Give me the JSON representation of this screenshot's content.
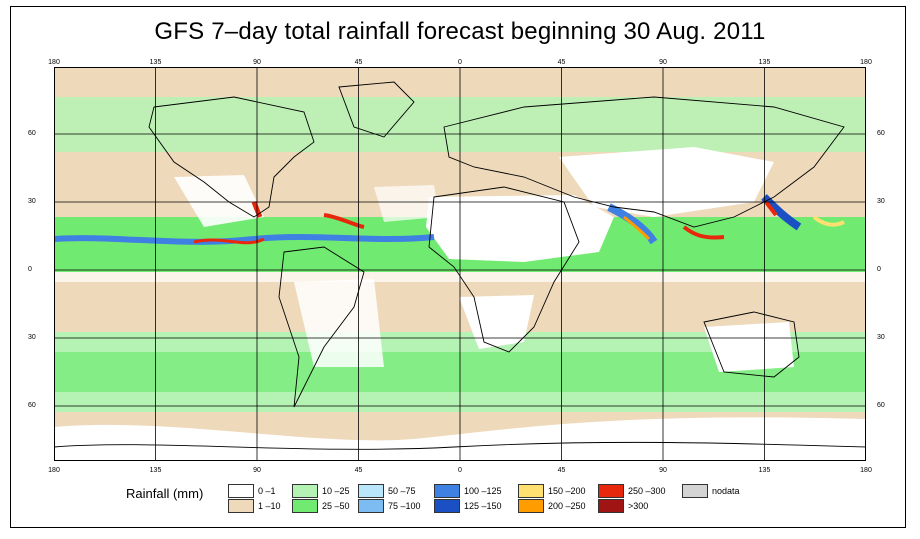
{
  "title": "GFS 7–day total rainfall forecast beginning 30 Aug. 2011",
  "axes": {
    "lon_ticks": [
      "180",
      "135",
      "90",
      "45",
      "0",
      "45",
      "90",
      "135",
      "180"
    ],
    "lat_ticks": [
      "60",
      "30",
      "0",
      "30",
      "60"
    ]
  },
  "legend": {
    "title": "Rainfall (mm)",
    "items": [
      {
        "label": "0 –1",
        "color": "#ffffff"
      },
      {
        "label": "1 –10",
        "color": "#eed9bb"
      },
      {
        "label": "10 –25",
        "color": "#b5f3b5"
      },
      {
        "label": "25 –50",
        "color": "#70ea70"
      },
      {
        "label": "50 –75",
        "color": "#b9e6fb"
      },
      {
        "label": "75 –100",
        "color": "#7cbcf2"
      },
      {
        "label": "100 –125",
        "color": "#3f80e3"
      },
      {
        "label": "125 –150",
        "color": "#1b4fc4"
      },
      {
        "label": "150 –200",
        "color": "#ffe070"
      },
      {
        "label": "200 –250",
        "color": "#ff9c00"
      },
      {
        "label": "250 –300",
        "color": "#e8280c"
      },
      {
        "label": ">300",
        "color": "#a11414"
      },
      {
        "label": "nodata",
        "color": "#d4d4d4"
      }
    ]
  }
}
